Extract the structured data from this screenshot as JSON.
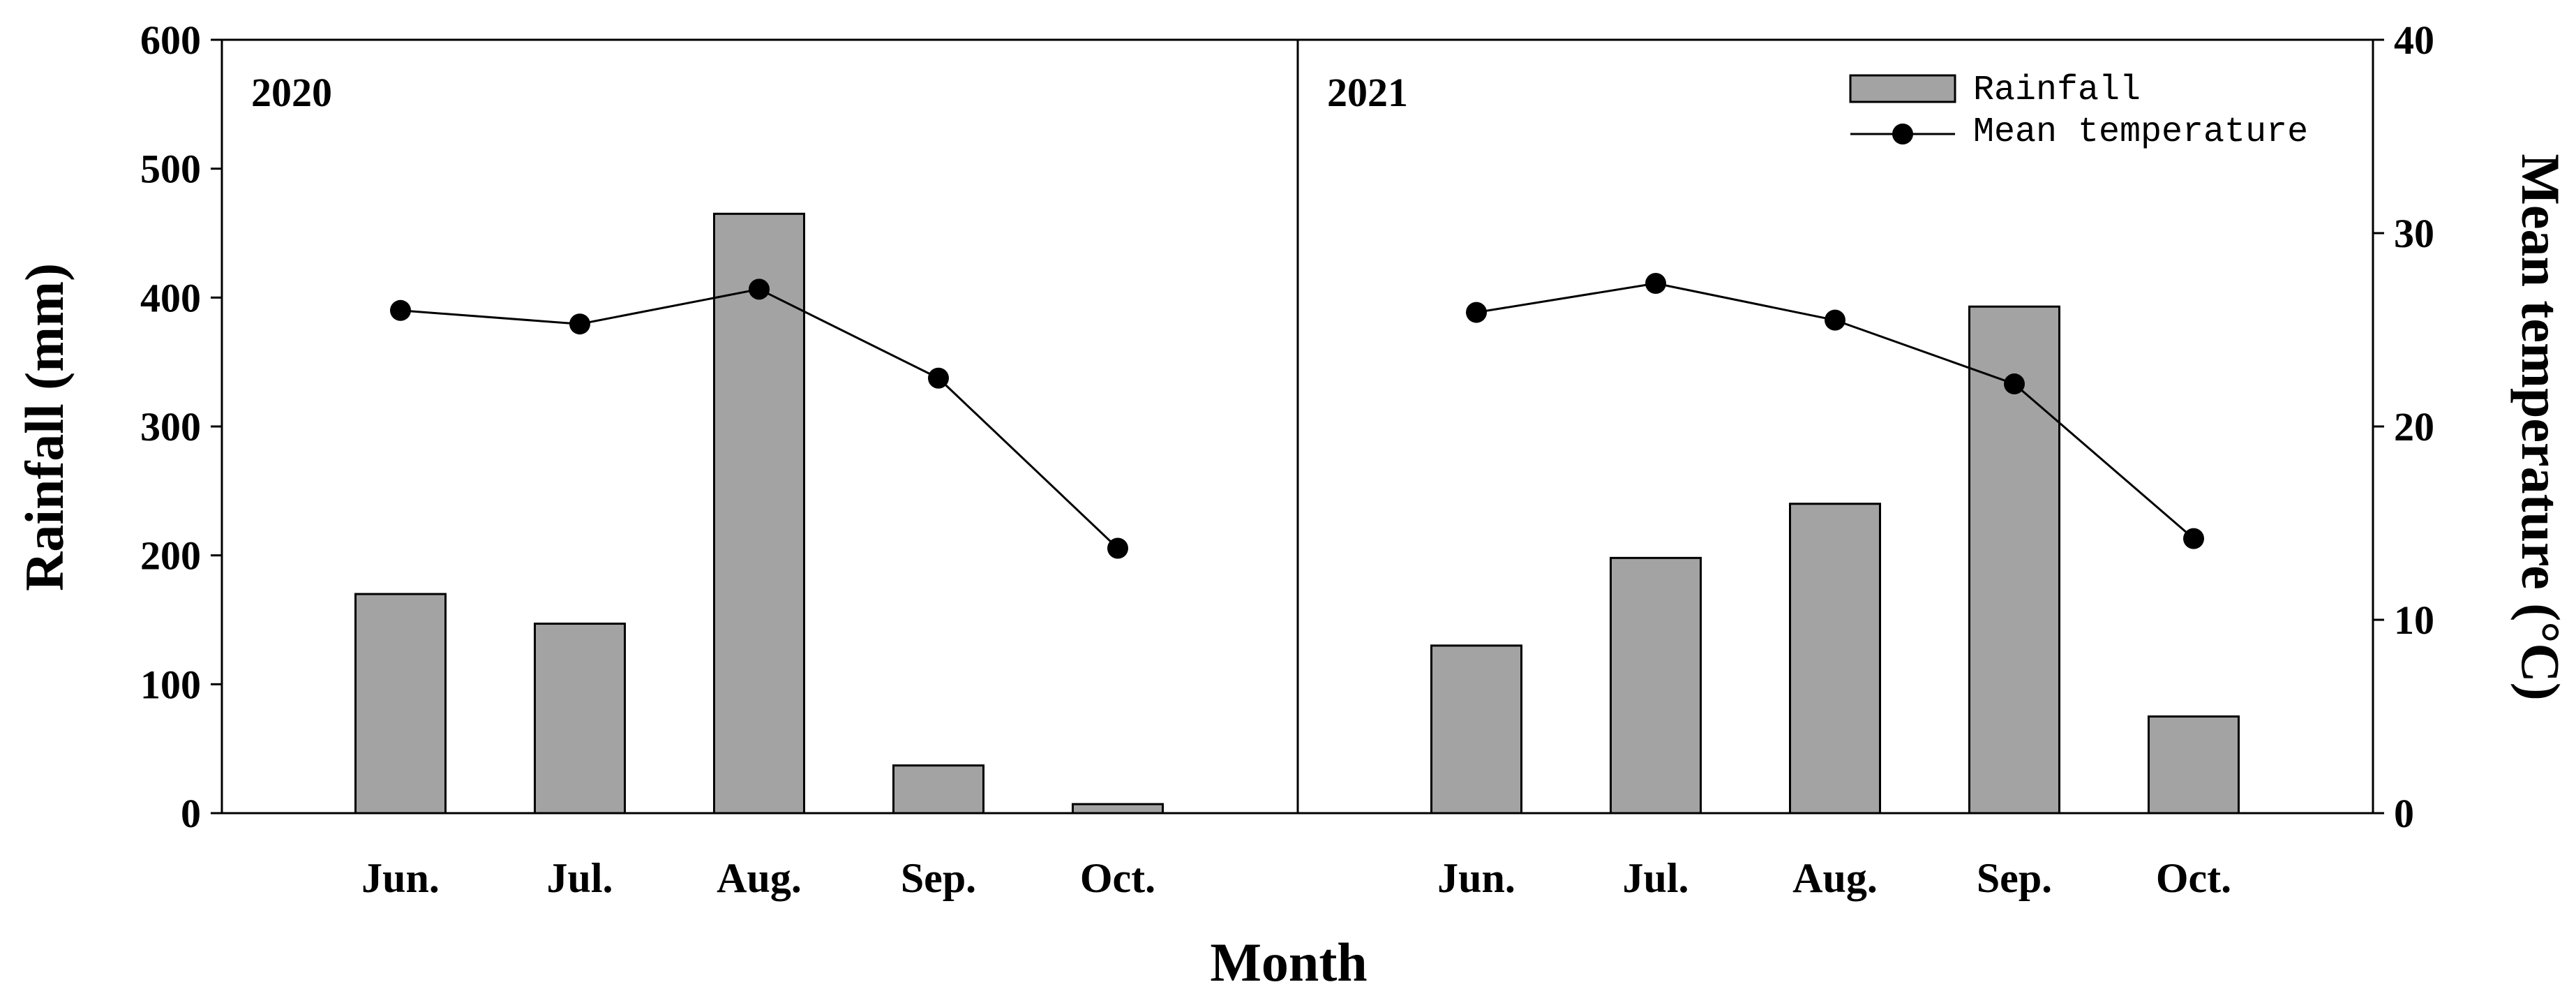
{
  "chart_data": {
    "type": "bar",
    "xlabel": "Month",
    "ylabel": "Rainfall (mm)",
    "y2label": "Mean temperature (°C)",
    "categories": [
      "Jun.",
      "Jul.",
      "Aug.",
      "Sep.",
      "Oct."
    ],
    "ylim": [
      0,
      600
    ],
    "y_ticks": [
      "0",
      "100",
      "200",
      "300",
      "400",
      "500",
      "600"
    ],
    "y2lim": [
      0,
      40
    ],
    "y2_ticks": [
      "0",
      "10",
      "20",
      "30",
      "40"
    ],
    "legend": {
      "placement": "top-right",
      "bar_label": "Rainfall",
      "line_label": "Mean temperature"
    },
    "colors": {
      "bar": "#a3a3a3",
      "line": "#000000"
    },
    "panels": [
      {
        "label": "2020",
        "rainfall": [
          170,
          147,
          465,
          37,
          7
        ],
        "temperature": [
          26.0,
          25.3,
          27.1,
          22.5,
          13.7
        ]
      },
      {
        "label": "2021",
        "rainfall": [
          130,
          198,
          240,
          393,
          75
        ],
        "temperature": [
          25.9,
          27.4,
          25.5,
          22.2,
          14.2
        ]
      }
    ]
  }
}
